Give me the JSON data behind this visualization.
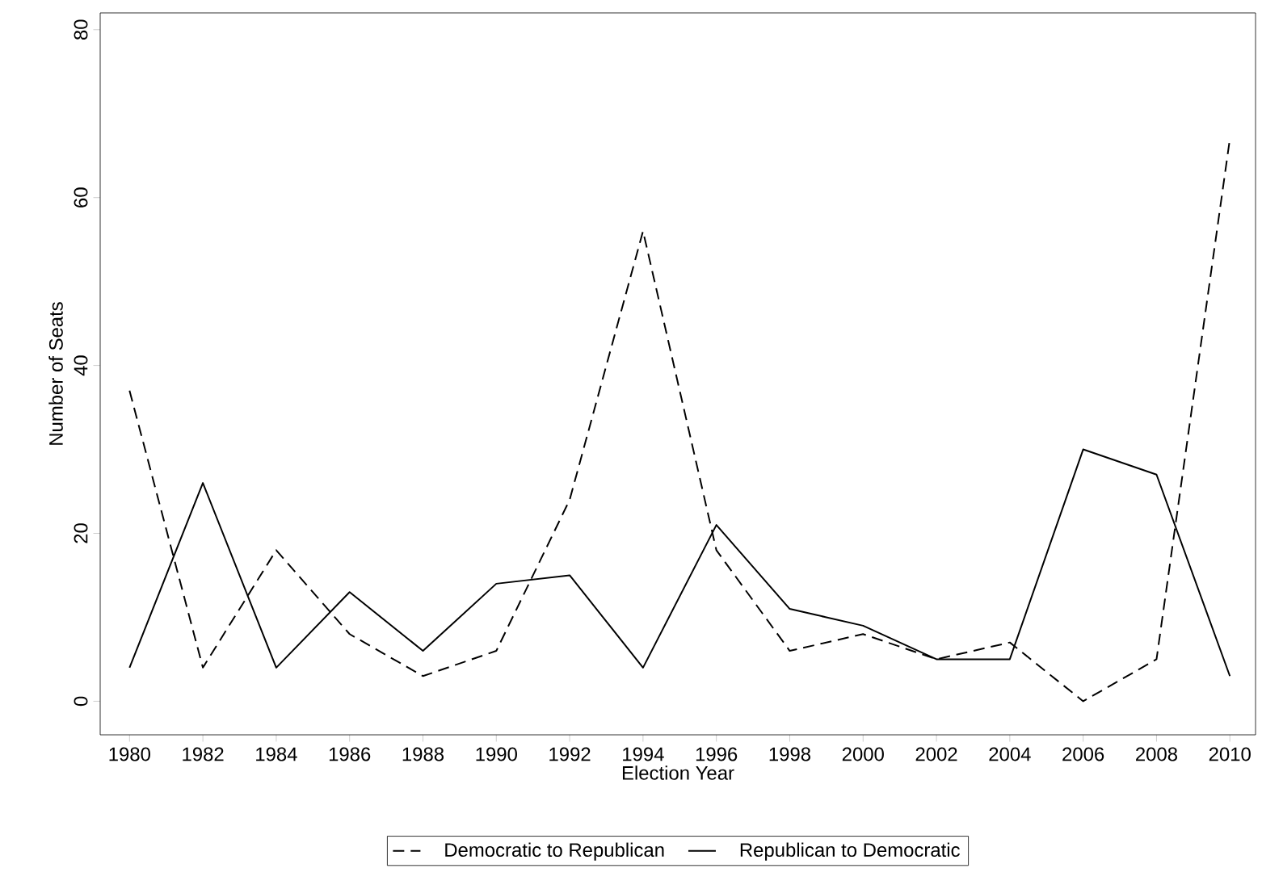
{
  "chart_data": {
    "type": "line",
    "xlabel": "Election Year",
    "ylabel": "Number of Seats",
    "x": [
      1980,
      1982,
      1984,
      1986,
      1988,
      1990,
      1992,
      1994,
      1996,
      1998,
      2000,
      2002,
      2004,
      2006,
      2008,
      2010
    ],
    "series": [
      {
        "name": "Democratic to Republican",
        "color": "#000000",
        "line_style": "dashed",
        "values": [
          37,
          4,
          18,
          8,
          3,
          6,
          24,
          56,
          18,
          6,
          8,
          5,
          7,
          0,
          5,
          67
        ]
      },
      {
        "name": "Republican to Democratic",
        "color": "#000000",
        "line_style": "solid",
        "values": [
          4,
          26,
          4,
          13,
          6,
          14,
          15,
          4,
          21,
          11,
          9,
          5,
          5,
          30,
          27,
          3
        ]
      }
    ],
    "xlim": [
      1979.2,
      2010.7
    ],
    "ylim": [
      -4,
      82
    ],
    "xticks": [
      1980,
      1982,
      1984,
      1986,
      1988,
      1990,
      1992,
      1994,
      1996,
      1998,
      2000,
      2002,
      2004,
      2006,
      2008,
      2010
    ],
    "yticks": [
      0,
      20,
      40,
      60,
      80
    ],
    "legend": "bottom",
    "grid": false,
    "marker": "none"
  }
}
